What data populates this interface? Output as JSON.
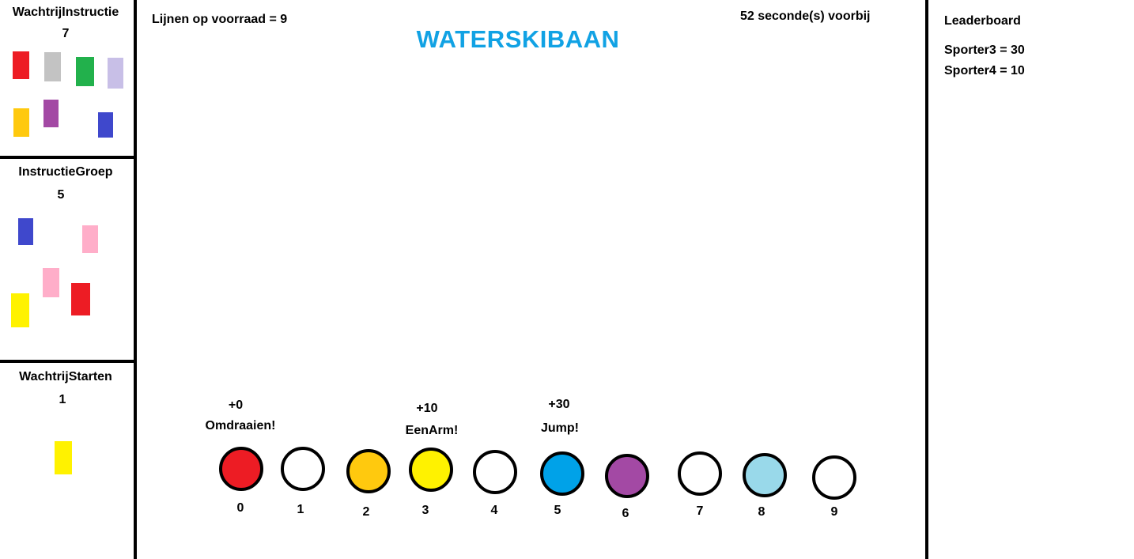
{
  "left_panels": {
    "wachtrij_instructie": {
      "title": "WachtrijInstructie",
      "count": "7",
      "blocks": [
        "#ed1c24",
        "#c3c3c3",
        "#22b14c",
        "#c8bfe7",
        "#ffc90e",
        "#a349a4",
        "#3f48cc"
      ]
    },
    "instructie_groep": {
      "title": "InstructieGroep",
      "count": "5",
      "blocks": [
        "#3f48cc",
        "#ffaec9",
        "#ffaec9",
        "#ed1c24",
        "#fff200"
      ]
    },
    "wachtrij_starten": {
      "title": "WachtrijStarten",
      "count": "1",
      "blocks": [
        "#fff200"
      ]
    }
  },
  "header": {
    "lines_stock": "Lijnen op voorraad = 9",
    "elapsed": "52 seconde(s) voorbij",
    "title": "WATERSKIBAAN"
  },
  "leaderboard": {
    "title": "Leaderboard",
    "entries": [
      "Sporter3 = 30",
      "Sporter4 = 10"
    ]
  },
  "lines": [
    {
      "number": "0",
      "color": "#ed1c24",
      "points": "+0",
      "trick": "Omdraaien!"
    },
    {
      "number": "1",
      "color": "#ffffff"
    },
    {
      "number": "2",
      "color": "#ffc90e"
    },
    {
      "number": "3",
      "color": "#fff200",
      "points": "+10",
      "trick": "EenArm!"
    },
    {
      "number": "4",
      "color": "#ffffff"
    },
    {
      "number": "5",
      "color": "#00a2e8",
      "points": "+30",
      "trick": "Jump!"
    },
    {
      "number": "6",
      "color": "#a349a4"
    },
    {
      "number": "7",
      "color": "#ffffff"
    },
    {
      "number": "8",
      "color": "#99d9ea"
    },
    {
      "number": "9",
      "color": "#ffffff"
    }
  ]
}
